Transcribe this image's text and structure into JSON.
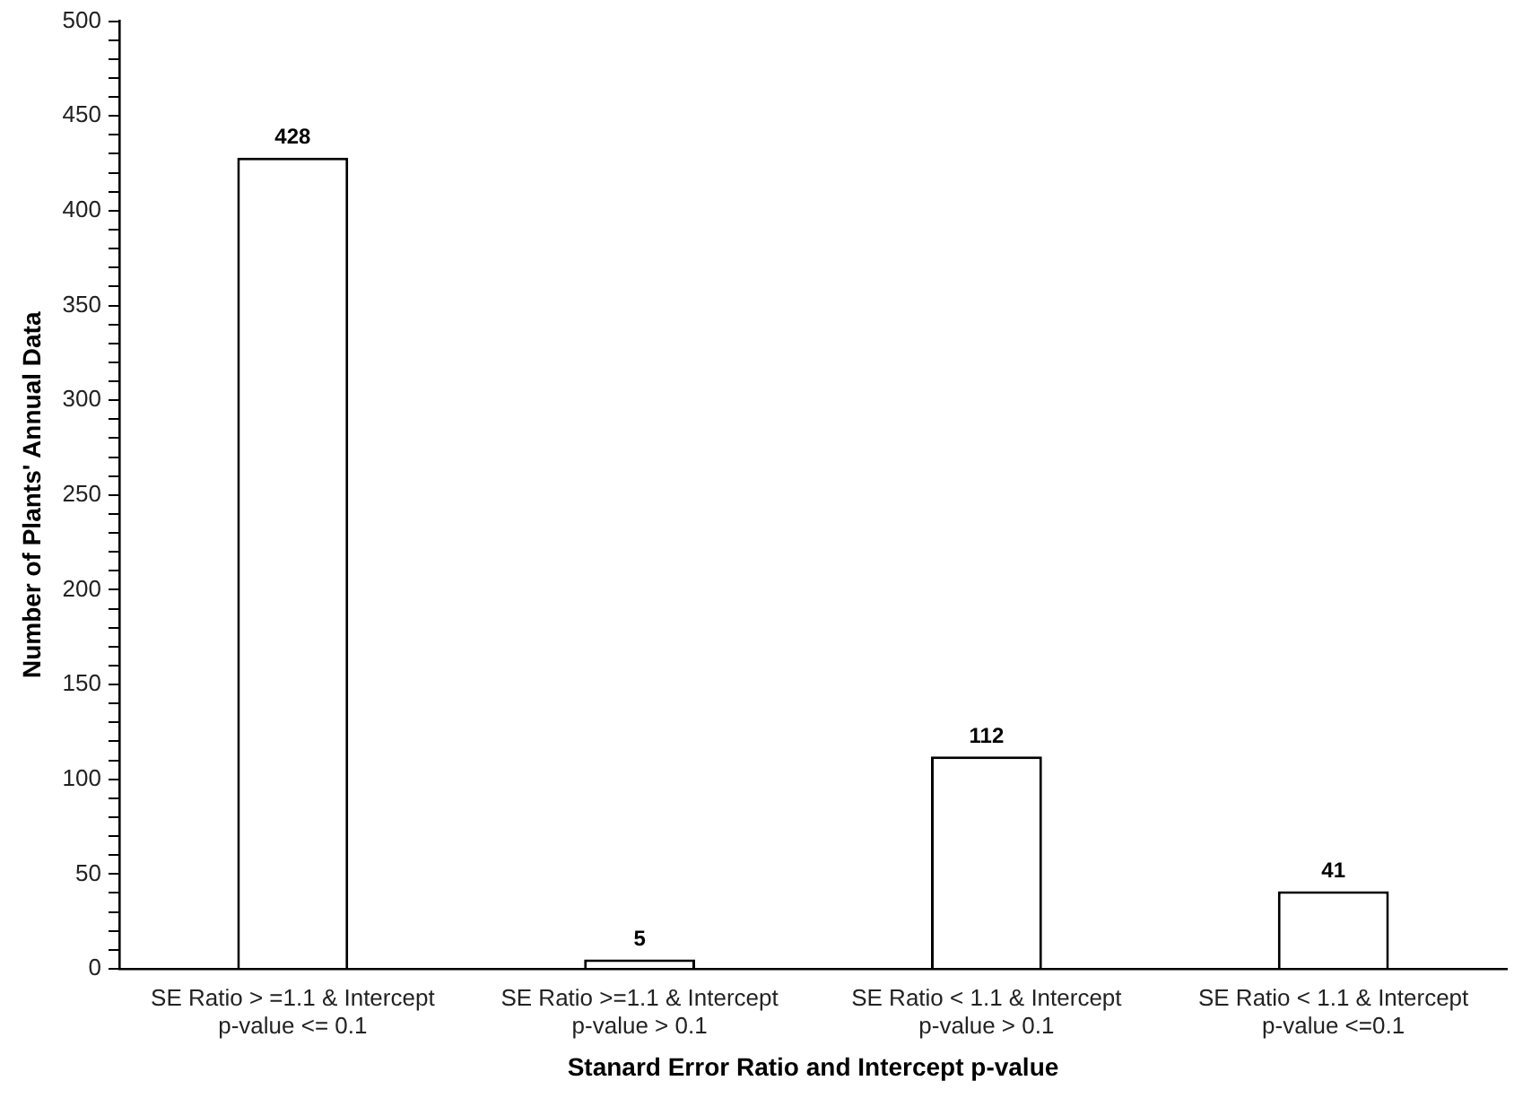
{
  "chart_data": {
    "type": "bar",
    "xlabel": "Stanard Error Ratio and Intercept p-value",
    "ylabel": "Number of Plants' Annual Data",
    "categories": [
      "SE Ratio > =1.1 & Intercept p-value <= 0.1",
      "SE Ratio >=1.1 & Intercept p-value > 0.1",
      "SE Ratio < 1.1 & Intercept p-value > 0.1",
      "SE Ratio < 1.1 & Intercept p-value <=0.1"
    ],
    "values": [
      428,
      5,
      112,
      41
    ],
    "color": "#ffffff",
    "data_labels": true,
    "grid": false,
    "legend": false,
    "ylim": [
      0,
      500
    ],
    "yticks": [
      0,
      {
        "value": 10,
        "label": null
      },
      {
        "value": 20,
        "label": null
      },
      {
        "value": 30,
        "label": null
      },
      {
        "value": 40,
        "label": null
      },
      50,
      {
        "value": 60,
        "label": null
      },
      {
        "value": 70,
        "label": null
      },
      {
        "value": 80,
        "label": null
      },
      {
        "value": 90,
        "label": null
      },
      100,
      {
        "value": 110,
        "label": null
      },
      {
        "value": 120,
        "label": null
      },
      {
        "value": 130,
        "label": null
      },
      {
        "value": 140,
        "label": null
      },
      150,
      {
        "value": 160,
        "label": null
      },
      {
        "value": 170,
        "label": null
      },
      {
        "value": 180,
        "label": null
      },
      {
        "value": 190,
        "label": null
      },
      200,
      {
        "value": 210,
        "label": null
      },
      {
        "value": 220,
        "label": null
      },
      {
        "value": 230,
        "label": null
      },
      {
        "value": 240,
        "label": null
      },
      250,
      {
        "value": 260,
        "label": null
      },
      {
        "value": 270,
        "label": null
      },
      {
        "value": 280,
        "label": null
      },
      {
        "value": 290,
        "label": null
      },
      300,
      {
        "value": 310,
        "label": null
      },
      {
        "value": 320,
        "label": null
      },
      {
        "value": 330,
        "label": null
      },
      {
        "value": 340,
        "label": null
      },
      350,
      {
        "value": 360,
        "label": null
      },
      {
        "value": 370,
        "label": null
      },
      {
        "value": 380,
        "label": null
      },
      {
        "value": 390,
        "label": null
      },
      400,
      {
        "value": 410,
        "label": null
      },
      {
        "value": 420,
        "label": null
      },
      {
        "value": 430,
        "label": null
      },
      {
        "value": 440,
        "label": null
      },
      450,
      {
        "value": 460,
        "label": null
      },
      {
        "value": 470,
        "label": null
      },
      {
        "value": 480,
        "label": null
      },
      {
        "value": 490,
        "label": null
      },
      500
    ]
  }
}
